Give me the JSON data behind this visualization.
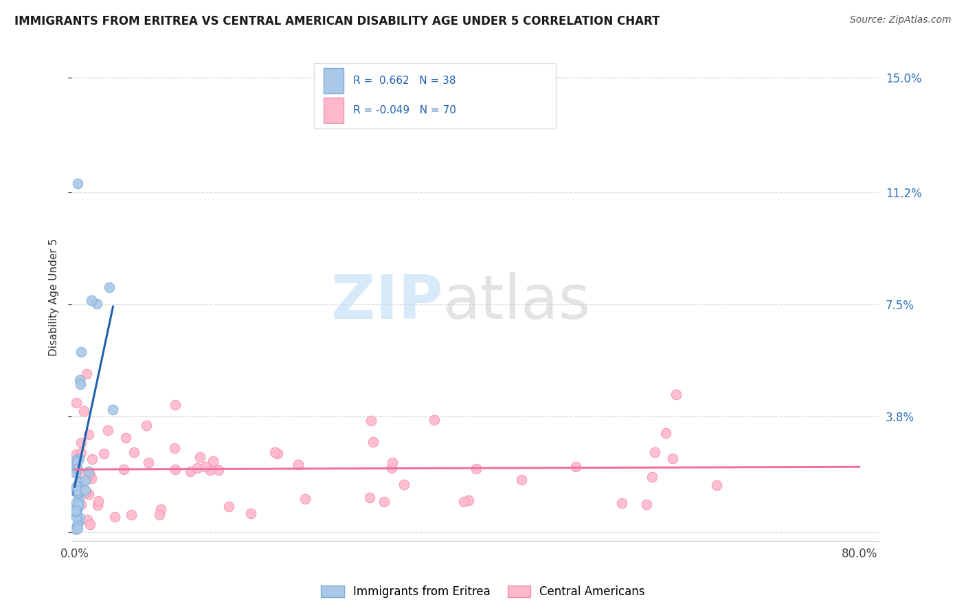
{
  "title": "IMMIGRANTS FROM ERITREA VS CENTRAL AMERICAN DISABILITY AGE UNDER 5 CORRELATION CHART",
  "source": "Source: ZipAtlas.com",
  "ylabel": "Disability Age Under 5",
  "xlim": [
    -0.003,
    0.82
  ],
  "ylim": [
    -0.003,
    0.158
  ],
  "xtick_positions": [
    0.0,
    0.8
  ],
  "xticklabels": [
    "0.0%",
    "80.0%"
  ],
  "ytick_positions": [
    0.0,
    0.038,
    0.075,
    0.112,
    0.15
  ],
  "ytick_labels": [
    "",
    "3.8%",
    "7.5%",
    "11.2%",
    "15.0%"
  ],
  "grid_color": "#cccccc",
  "background_color": "#ffffff",
  "eritrea_color": "#aac8e8",
  "eritrea_edge_color": "#7aadd4",
  "central_color": "#ffb8cc",
  "central_edge_color": "#f090a8",
  "eritrea_line_color": "#2060b0",
  "central_line_color": "#f070a0",
  "legend_eritrea_label": "Immigrants from Eritrea",
  "legend_central_label": "Central Americans",
  "title_fontsize": 12,
  "source_fontsize": 10,
  "tick_fontsize": 12,
  "ytick_color": "#3070c0",
  "xtick_color": "#444444"
}
